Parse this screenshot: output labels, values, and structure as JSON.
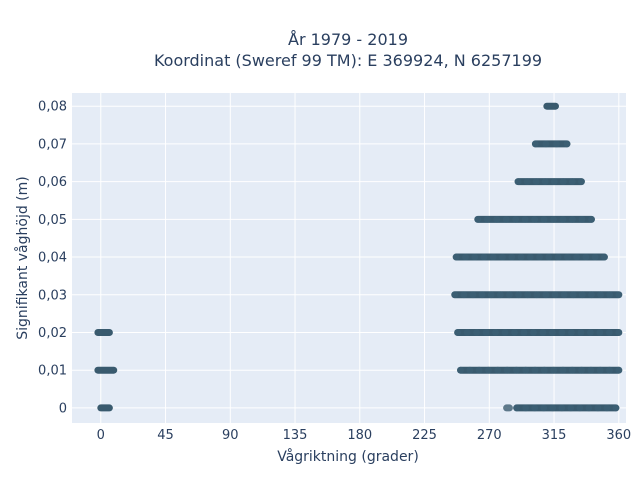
{
  "chart_data": {
    "type": "scatter",
    "title_line1": "År 1979 - 2019",
    "title_line2": "Koordinat (Sweref 99 TM): E 369924, N 6257199",
    "xlabel": "Vågriktning (grader)",
    "ylabel": "Signifikant våghöjd (m)",
    "xlim": [
      -20,
      365
    ],
    "ylim": [
      -0.004,
      0.0835
    ],
    "x_ticks": [
      0,
      45,
      90,
      135,
      180,
      225,
      270,
      315,
      360
    ],
    "x_tick_labels": [
      "0",
      "45",
      "90",
      "135",
      "180",
      "225",
      "270",
      "315",
      "360"
    ],
    "y_ticks": [
      0,
      0.01,
      0.02,
      0.03,
      0.04,
      0.05,
      0.06,
      0.07,
      0.08
    ],
    "y_tick_labels": [
      "0",
      "0,01",
      "0,02",
      "0,03",
      "0,04",
      "0,05",
      "0,06",
      "0,07",
      "0,08"
    ],
    "grid": true,
    "marker_color": "#2f5266",
    "plot_bg": "#e5ecf6",
    "series": [
      {
        "bands": [
          {
            "y": 0.0,
            "ranges": [
              [
                0,
                6
              ],
              [
                282,
                284
              ],
              [
                289,
                358
              ]
            ]
          },
          {
            "y": 0.01,
            "ranges": [
              [
                -2,
                9
              ],
              [
                250,
                360
              ]
            ]
          },
          {
            "y": 0.02,
            "ranges": [
              [
                -2,
                6
              ],
              [
                248,
                360
              ]
            ]
          },
          {
            "y": 0.03,
            "ranges": [
              [
                246,
                360
              ]
            ]
          },
          {
            "y": 0.04,
            "ranges": [
              [
                247,
                350
              ]
            ]
          },
          {
            "y": 0.05,
            "ranges": [
              [
                262,
                341
              ]
            ]
          },
          {
            "y": 0.06,
            "ranges": [
              [
                290,
                334
              ]
            ]
          },
          {
            "y": 0.07,
            "ranges": [
              [
                302,
                324
              ]
            ]
          },
          {
            "y": 0.08,
            "ranges": [
              [
                310,
                316
              ]
            ]
          }
        ]
      }
    ]
  }
}
